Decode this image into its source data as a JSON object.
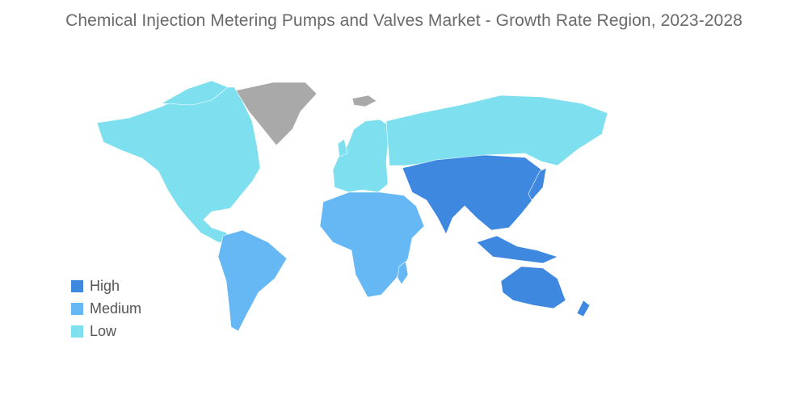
{
  "title": "Chemical Injection Metering Pumps and Valves Market - Growth Rate Region, 2023-2028",
  "colors": {
    "high": "#3f88e0",
    "medium": "#66b8f5",
    "low": "#7ee0ef",
    "no_data": "#a9a9a9"
  },
  "legend": {
    "items": [
      {
        "label": "High",
        "color": "#3f88e0"
      },
      {
        "label": "Medium",
        "color": "#66b8f5"
      },
      {
        "label": "Low",
        "color": "#7ee0ef"
      }
    ]
  },
  "regions": [
    {
      "region": "North America",
      "level": "Low"
    },
    {
      "region": "Europe",
      "level": "Low"
    },
    {
      "region": "Russia / Northern Asia",
      "level": "Low"
    },
    {
      "region": "Asia-Pacific",
      "level": "High"
    },
    {
      "region": "South America",
      "level": "Medium"
    },
    {
      "region": "Middle East and Africa",
      "level": "Medium"
    },
    {
      "region": "Greenland",
      "level": "No data"
    }
  ]
}
